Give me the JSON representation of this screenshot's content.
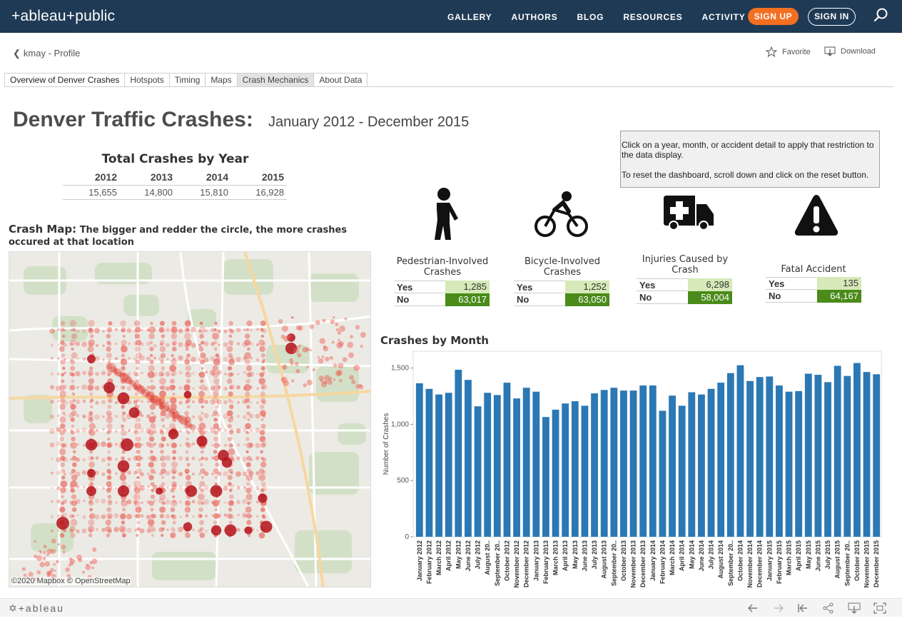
{
  "nav": {
    "logo": "+ableau+public",
    "links": [
      "GALLERY",
      "AUTHORS",
      "BLOG",
      "RESOURCES",
      "ACTIVITY"
    ],
    "signup": "SIGN UP",
    "signin": "SIGN IN",
    "search_icon": "search-icon"
  },
  "profile": {
    "back_label": "kmay - Profile",
    "favorite_label": "Favorite",
    "download_label": "Download"
  },
  "tabs": [
    "Overview of Denver Crashes",
    "Hotspots",
    "Timing",
    "Maps",
    "Crash Mechanics",
    "About Data"
  ],
  "dashboard": {
    "title": "Denver Traffic Crashes:",
    "subtitle": "January 2012 - December 2015",
    "info_line1": "Click on a year, month, or accident detail to apply that restriction to the data display.",
    "info_line2": "To reset the dashboard, scroll down and click on the reset button.",
    "years_title": "Total Crashes by Year",
    "years": [
      "2012",
      "2013",
      "2014",
      "2015"
    ],
    "year_totals": [
      "15,655",
      "14,800",
      "15,810",
      "16,928"
    ],
    "map_title_big": "Crash Map:",
    "map_title_rest": "The bigger and redder the circle, the more crashes occured at that location",
    "map_attribution": "©2020 Mapbox © OpenStreetMap",
    "categories": [
      {
        "label": "Pedestrian-Involved Crashes",
        "yes": "1,285",
        "no": "63,017"
      },
      {
        "label": "Bicycle-Involved Crashes",
        "yes": "1,252",
        "no": "63,050"
      },
      {
        "label": "Injuries Caused by Crash",
        "yes": "6,298",
        "no": "58,004"
      },
      {
        "label": "Fatal Accident",
        "yes": "135",
        "no": "64,167"
      }
    ],
    "yes_label": "Yes",
    "no_label": "No",
    "chart_title": "Crashes by Month"
  },
  "colors": {
    "nav_bg": "#1f3a55",
    "signup": "#f36f21",
    "bar": "#2b78b4",
    "yes_bg": "#d6e9b8",
    "no_bg": "#4a8b1a"
  },
  "chart_data": {
    "type": "bar",
    "title": "Crashes by Month",
    "xlabel": "",
    "ylabel": "Number of Crashes",
    "ylim": [
      0,
      1650
    ],
    "yticks": [
      "0",
      "500",
      "1,000",
      "1,500"
    ],
    "categories": [
      "January 2012",
      "February 2012",
      "March 2012",
      "April 2012",
      "May 2012",
      "June 2012",
      "July 2012",
      "August 20..",
      "September 20..",
      "October 2012",
      "November 2012",
      "December 2012",
      "January 2013",
      "February 2013",
      "March 2013",
      "April 2013",
      "May 2013",
      "June 2013",
      "July 2013",
      "August 2013",
      "September 20..",
      "October 2013",
      "November 2013",
      "December 2013",
      "January 2014",
      "February 2014",
      "March 2014",
      "April 2014",
      "May 2014",
      "June 2014",
      "July 2014",
      "August 2014",
      "September 20..",
      "October 2014",
      "November 2014",
      "December 2014",
      "January 2015",
      "February 2015",
      "March 2015",
      "April 2015",
      "May 2015",
      "June 2015",
      "July 2015",
      "August 2015",
      "September 20..",
      "October 2015",
      "November 2015",
      "December 2015"
    ],
    "values": [
      1365,
      1315,
      1265,
      1280,
      1485,
      1395,
      1160,
      1280,
      1260,
      1370,
      1230,
      1325,
      1290,
      1065,
      1130,
      1185,
      1205,
      1165,
      1275,
      1305,
      1325,
      1300,
      1300,
      1345,
      1345,
      1120,
      1255,
      1165,
      1285,
      1265,
      1315,
      1370,
      1455,
      1525,
      1385,
      1420,
      1425,
      1345,
      1290,
      1295,
      1450,
      1440,
      1375,
      1520,
      1430,
      1545,
      1465,
      1445
    ]
  }
}
